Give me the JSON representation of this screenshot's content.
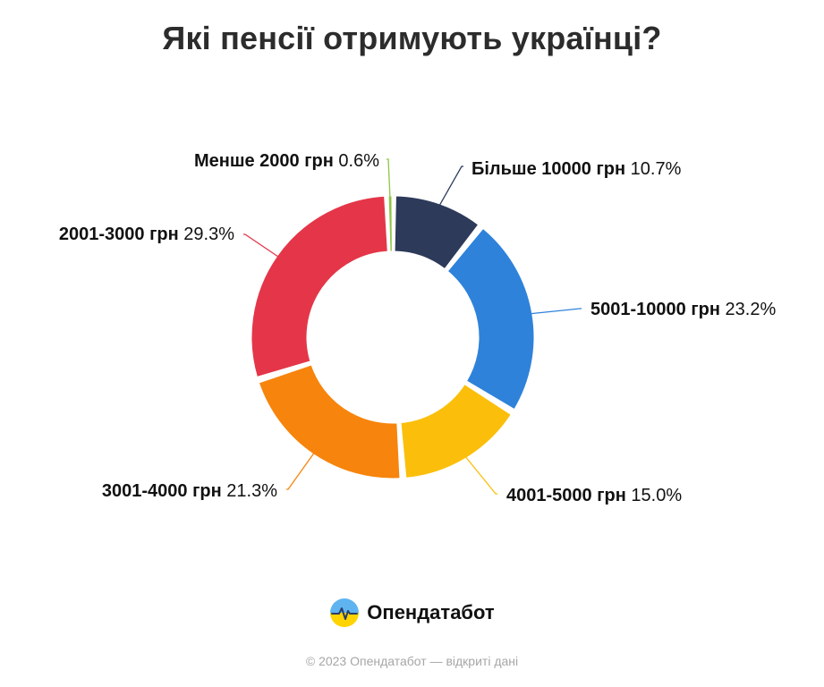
{
  "title": "Які пенсії отримують українці?",
  "chart_data": {
    "type": "pie",
    "title": "Які пенсії отримують українці?",
    "slices": [
      {
        "label": "Більше 10000 грн",
        "pct": "10.7%",
        "value": 10.7,
        "color": "#2d3a5a"
      },
      {
        "label": "5001-10000 грн",
        "pct": "23.2%",
        "value": 23.2,
        "color": "#2e82da"
      },
      {
        "label": "4001-5000 грн",
        "pct": "15.0%",
        "value": 15.0,
        "color": "#fbbf0b"
      },
      {
        "label": "3001-4000 грн",
        "pct": "21.3%",
        "value": 21.3,
        "color": "#f7840c"
      },
      {
        "label": "2001-3000 грн",
        "pct": "29.3%",
        "value": 29.3,
        "color": "#e43648"
      },
      {
        "label": "Менше 2000 грн",
        "pct": "0.6%",
        "value": 0.6,
        "color": "#8ec643"
      }
    ]
  },
  "brand": {
    "name": "Опендатабот",
    "logo_icon": "opendatabot-logo-icon"
  },
  "footer": "© 2023 Опендатабот — відкриті дані"
}
